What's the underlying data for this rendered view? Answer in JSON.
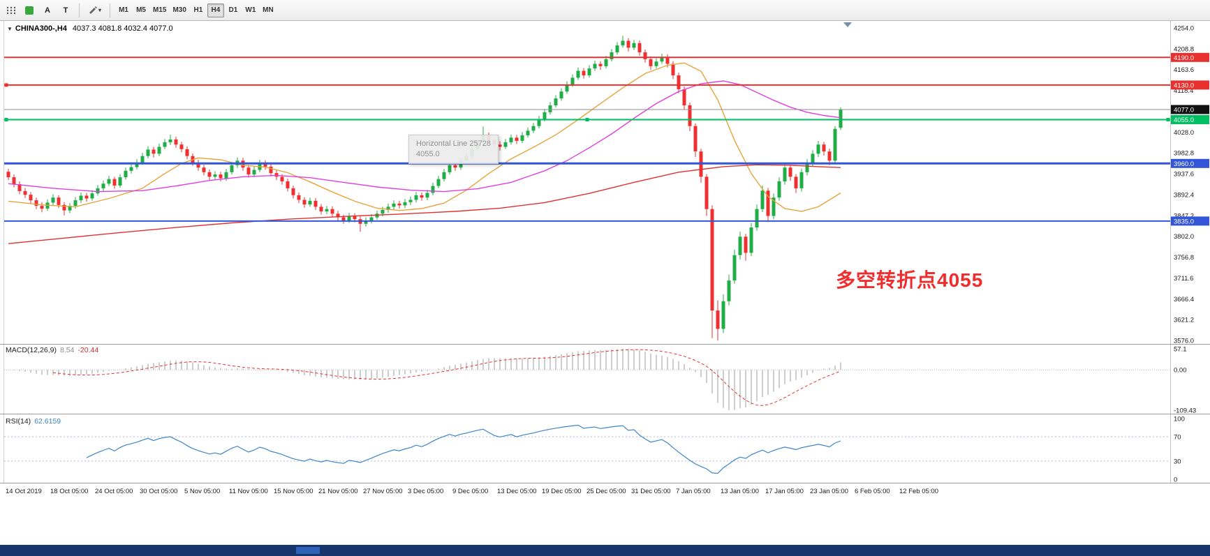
{
  "toolbar": {
    "text_button_label": "A",
    "tool_button_label": "T",
    "draw_dropdown_glyph": "▾",
    "timeframes": [
      "M1",
      "M5",
      "M15",
      "M30",
      "H1",
      "H4",
      "D1",
      "W1",
      "MN"
    ],
    "active_timeframe": "H4"
  },
  "chart": {
    "collapse_glyph": "▼",
    "title": "CHINA300-,H4",
    "ohlc": "4037.3 4081.8 4032.4 4077.0",
    "tooltip": {
      "line1": "Horizontal Line 25728",
      "line2": "4055.0"
    },
    "annotation": {
      "text": "多空转折点4055",
      "color": "#ef2d2d"
    }
  },
  "chart_data": {
    "type": "candlestick",
    "symbol": "CHINA300-",
    "timeframe": "H4",
    "current_bar": {
      "open": 4037.3,
      "high": 4081.8,
      "low": 4032.4,
      "close": 4077.0
    },
    "ylim": [
      3576.0,
      4254.0
    ],
    "colors": {
      "up": "#1fae45",
      "down": "#ef3030"
    },
    "price_axis_labels": [
      "4254.0",
      "4208.8",
      "4163.6",
      "4118.4",
      "4073.2",
      "4028.0",
      "3982.8",
      "3937.6",
      "3892.4",
      "3847.2",
      "3802.0",
      "3756.8",
      "3711.6",
      "3666.4",
      "3621.2",
      "3576.0"
    ],
    "x_axis_labels": [
      "14 Oct 2019",
      "18 Oct 05:00",
      "24 Oct 05:00",
      "30 Oct 05:00",
      "5 Nov 05:00",
      "11 Nov 05:00",
      "15 Nov 05:00",
      "21 Nov 05:00",
      "27 Nov 05:00",
      "3 Dec 05:00",
      "9 Dec 05:00",
      "13 Dec 05:00",
      "19 Dec 05:00",
      "25 Dec 05:00",
      "31 Dec 05:00",
      "7 Jan 05:00",
      "13 Jan 05:00",
      "17 Jan 05:00",
      "23 Jan 05:00",
      "6 Feb 05:00",
      "12 Feb 05:00"
    ],
    "candles": [
      [
        3942,
        3948,
        3924,
        3930
      ],
      [
        3930,
        3936,
        3908,
        3915
      ],
      [
        3915,
        3921,
        3893,
        3900
      ],
      [
        3900,
        3907,
        3885,
        3892
      ],
      [
        3892,
        3898,
        3873,
        3880
      ],
      [
        3880,
        3886,
        3861,
        3868
      ],
      [
        3868,
        3876,
        3854,
        3862
      ],
      [
        3862,
        3882,
        3857,
        3875
      ],
      [
        3875,
        3893,
        3869,
        3886
      ],
      [
        3886,
        3891,
        3863,
        3870
      ],
      [
        3870,
        3876,
        3847,
        3858
      ],
      [
        3858,
        3874,
        3852,
        3868
      ],
      [
        3868,
        3887,
        3862,
        3880
      ],
      [
        3880,
        3897,
        3874,
        3890
      ],
      [
        3890,
        3896,
        3877,
        3884
      ],
      [
        3884,
        3902,
        3879,
        3895
      ],
      [
        3895,
        3913,
        3890,
        3906
      ],
      [
        3906,
        3923,
        3900,
        3916
      ],
      [
        3916,
        3933,
        3911,
        3926
      ],
      [
        3926,
        3931,
        3905,
        3912
      ],
      [
        3912,
        3937,
        3907,
        3930
      ],
      [
        3930,
        3951,
        3925,
        3944
      ],
      [
        3944,
        3959,
        3938,
        3952
      ],
      [
        3952,
        3969,
        3947,
        3962
      ],
      [
        3962,
        3983,
        3957,
        3976
      ],
      [
        3976,
        3997,
        3971,
        3990
      ],
      [
        3990,
        3996,
        3973,
        3981
      ],
      [
        3981,
        4003,
        3976,
        3996
      ],
      [
        3996,
        4013,
        3991,
        4006
      ],
      [
        4006,
        4022,
        4000,
        4012
      ],
      [
        4012,
        4018,
        3994,
        4001
      ],
      [
        4001,
        4007,
        3984,
        3991
      ],
      [
        3991,
        3997,
        3969,
        3976
      ],
      [
        3976,
        3982,
        3955,
        3962
      ],
      [
        3962,
        3968,
        3944,
        3951
      ],
      [
        3951,
        3957,
        3934,
        3941
      ],
      [
        3941,
        3947,
        3924,
        3931
      ],
      [
        3931,
        3943,
        3925,
        3936
      ],
      [
        3936,
        3942,
        3921,
        3928
      ],
      [
        3928,
        3948,
        3922,
        3941
      ],
      [
        3941,
        3963,
        3936,
        3956
      ],
      [
        3956,
        3973,
        3950,
        3966
      ],
      [
        3966,
        3972,
        3944,
        3951
      ],
      [
        3951,
        3957,
        3929,
        3936
      ],
      [
        3936,
        3953,
        3930,
        3946
      ],
      [
        3946,
        3968,
        3941,
        3961
      ],
      [
        3961,
        3967,
        3946,
        3953
      ],
      [
        3953,
        3959,
        3932,
        3939
      ],
      [
        3939,
        3945,
        3924,
        3931
      ],
      [
        3931,
        3937,
        3914,
        3921
      ],
      [
        3921,
        3927,
        3899,
        3906
      ],
      [
        3906,
        3912,
        3884,
        3891
      ],
      [
        3891,
        3897,
        3874,
        3881
      ],
      [
        3881,
        3887,
        3864,
        3871
      ],
      [
        3871,
        3886,
        3866,
        3879
      ],
      [
        3879,
        3885,
        3859,
        3866
      ],
      [
        3866,
        3872,
        3849,
        3856
      ],
      [
        3856,
        3868,
        3850,
        3861
      ],
      [
        3861,
        3867,
        3844,
        3851
      ],
      [
        3851,
        3857,
        3836,
        3843
      ],
      [
        3843,
        3849,
        3829,
        3836
      ],
      [
        3836,
        3853,
        3831,
        3846
      ],
      [
        3846,
        3852,
        3832,
        3839
      ],
      [
        3839,
        3845,
        3812,
        3829
      ],
      [
        3829,
        3843,
        3823,
        3836
      ],
      [
        3836,
        3850,
        3830,
        3843
      ],
      [
        3843,
        3858,
        3838,
        3851
      ],
      [
        3851,
        3866,
        3845,
        3859
      ],
      [
        3859,
        3873,
        3853,
        3866
      ],
      [
        3866,
        3880,
        3860,
        3873
      ],
      [
        3873,
        3879,
        3862,
        3869
      ],
      [
        3869,
        3883,
        3863,
        3876
      ],
      [
        3876,
        3888,
        3870,
        3881
      ],
      [
        3881,
        3898,
        3875,
        3891
      ],
      [
        3891,
        3897,
        3879,
        3886
      ],
      [
        3886,
        3903,
        3880,
        3896
      ],
      [
        3896,
        3918,
        3891,
        3911
      ],
      [
        3911,
        3933,
        3906,
        3926
      ],
      [
        3926,
        3948,
        3921,
        3941
      ],
      [
        3941,
        3963,
        3936,
        3956
      ],
      [
        3956,
        3962,
        3944,
        3951
      ],
      [
        3951,
        3973,
        3946,
        3966
      ],
      [
        3966,
        3983,
        3960,
        3976
      ],
      [
        3976,
        3998,
        3971,
        3991
      ],
      [
        3991,
        4013,
        3986,
        4006
      ],
      [
        4006,
        4040,
        4001,
        4021
      ],
      [
        4021,
        4027,
        4004,
        4011
      ],
      [
        4011,
        4017,
        3994,
        4001
      ],
      [
        4001,
        4008,
        3988,
        3996
      ],
      [
        3996,
        4013,
        3991,
        4006
      ],
      [
        4006,
        4023,
        4001,
        4016
      ],
      [
        4016,
        4022,
        4002,
        4009
      ],
      [
        4009,
        4028,
        4004,
        4021
      ],
      [
        4021,
        4038,
        4016,
        4031
      ],
      [
        4031,
        4048,
        4026,
        4041
      ],
      [
        4041,
        4063,
        4036,
        4056
      ],
      [
        4056,
        4078,
        4051,
        4071
      ],
      [
        4071,
        4093,
        4066,
        4086
      ],
      [
        4086,
        4108,
        4081,
        4101
      ],
      [
        4101,
        4123,
        4096,
        4116
      ],
      [
        4116,
        4138,
        4111,
        4131
      ],
      [
        4131,
        4153,
        4126,
        4146
      ],
      [
        4146,
        4168,
        4141,
        4161
      ],
      [
        4161,
        4167,
        4144,
        4151
      ],
      [
        4151,
        4173,
        4146,
        4166
      ],
      [
        4166,
        4183,
        4161,
        4176
      ],
      [
        4176,
        4182,
        4163,
        4171
      ],
      [
        4171,
        4193,
        4166,
        4186
      ],
      [
        4186,
        4208,
        4181,
        4201
      ],
      [
        4201,
        4223,
        4196,
        4216
      ],
      [
        4216,
        4237,
        4211,
        4226
      ],
      [
        4226,
        4232,
        4203,
        4211
      ],
      [
        4211,
        4228,
        4206,
        4221
      ],
      [
        4221,
        4227,
        4194,
        4201
      ],
      [
        4201,
        4207,
        4179,
        4186
      ],
      [
        4186,
        4192,
        4163,
        4171
      ],
      [
        4171,
        4188,
        4166,
        4181
      ],
      [
        4181,
        4198,
        4176,
        4191
      ],
      [
        4191,
        4197,
        4168,
        4176
      ],
      [
        4176,
        4182,
        4143,
        4151
      ],
      [
        4151,
        4157,
        4112,
        4121
      ],
      [
        4121,
        4127,
        4076,
        4086
      ],
      [
        4086,
        4092,
        4030,
        4041
      ],
      [
        4041,
        4047,
        3974,
        3986
      ],
      [
        3986,
        3992,
        3918,
        3931
      ],
      [
        3931,
        3937,
        3846,
        3861
      ],
      [
        3861,
        3869,
        3581,
        3641
      ],
      [
        3641,
        3663,
        3576,
        3601
      ],
      [
        3601,
        3676,
        3592,
        3661
      ],
      [
        3661,
        3719,
        3652,
        3706
      ],
      [
        3706,
        3773,
        3699,
        3761
      ],
      [
        3761,
        3812,
        3752,
        3801
      ],
      [
        3801,
        3807,
        3749,
        3766
      ],
      [
        3766,
        3831,
        3759,
        3821
      ],
      [
        3821,
        3871,
        3814,
        3861
      ],
      [
        3861,
        3912,
        3854,
        3901
      ],
      [
        3901,
        3907,
        3833,
        3846
      ],
      [
        3846,
        3895,
        3839,
        3886
      ],
      [
        3886,
        3930,
        3879,
        3921
      ],
      [
        3921,
        3959,
        3914,
        3951
      ],
      [
        3951,
        3957,
        3922,
        3931
      ],
      [
        3931,
        3937,
        3896,
        3906
      ],
      [
        3906,
        3949,
        3899,
        3941
      ],
      [
        3941,
        3969,
        3934,
        3961
      ],
      [
        3961,
        3989,
        3954,
        3981
      ],
      [
        3981,
        4009,
        3974,
        4001
      ],
      [
        4001,
        4007,
        3977,
        3986
      ],
      [
        3986,
        3992,
        3956,
        3966
      ],
      [
        3966,
        4041,
        3960,
        4035
      ],
      [
        4037.3,
        4081.8,
        4032.4,
        4077.0
      ]
    ],
    "ma_lines": [
      {
        "name": "ma-fast-orange",
        "color": "#e8a33d",
        "points": [
          [
            0,
            3878
          ],
          [
            6,
            3870
          ],
          [
            12,
            3866
          ],
          [
            18,
            3884
          ],
          [
            24,
            3906
          ],
          [
            28,
            3938
          ],
          [
            31,
            3960
          ],
          [
            34,
            3972
          ],
          [
            38,
            3968
          ],
          [
            42,
            3956
          ],
          [
            46,
            3952
          ],
          [
            50,
            3940
          ],
          [
            54,
            3920
          ],
          [
            58,
            3898
          ],
          [
            62,
            3878
          ],
          [
            66,
            3863
          ],
          [
            70,
            3858
          ],
          [
            74,
            3862
          ],
          [
            78,
            3874
          ],
          [
            82,
            3902
          ],
          [
            86,
            3938
          ],
          [
            90,
            3970
          ],
          [
            94,
            3995
          ],
          [
            98,
            4022
          ],
          [
            102,
            4055
          ],
          [
            106,
            4090
          ],
          [
            110,
            4124
          ],
          [
            114,
            4155
          ],
          [
            118,
            4173
          ],
          [
            121,
            4178
          ],
          [
            124,
            4160
          ],
          [
            127,
            4098
          ],
          [
            130,
            4010
          ],
          [
            133,
            3938
          ],
          [
            136,
            3888
          ],
          [
            139,
            3862
          ],
          [
            142,
            3856
          ],
          [
            145,
            3866
          ],
          [
            149,
            3896
          ]
        ]
      },
      {
        "name": "ma-mid-magenta",
        "color": "#e040e0",
        "points": [
          [
            0,
            3916
          ],
          [
            8,
            3906
          ],
          [
            16,
            3899
          ],
          [
            24,
            3901
          ],
          [
            30,
            3911
          ],
          [
            36,
            3923
          ],
          [
            42,
            3931
          ],
          [
            48,
            3934
          ],
          [
            54,
            3929
          ],
          [
            60,
            3919
          ],
          [
            66,
            3909
          ],
          [
            72,
            3902
          ],
          [
            78,
            3899
          ],
          [
            84,
            3905
          ],
          [
            90,
            3919
          ],
          [
            96,
            3944
          ],
          [
            100,
            3966
          ],
          [
            104,
            3994
          ],
          [
            108,
            4024
          ],
          [
            112,
            4058
          ],
          [
            116,
            4090
          ],
          [
            120,
            4116
          ],
          [
            124,
            4133
          ],
          [
            128,
            4139
          ],
          [
            131,
            4131
          ],
          [
            134,
            4114
          ],
          [
            137,
            4097
          ],
          [
            140,
            4082
          ],
          [
            143,
            4071
          ],
          [
            146,
            4064
          ],
          [
            149,
            4059
          ]
        ]
      },
      {
        "name": "ma-slow-red",
        "color": "#e03131",
        "points": [
          [
            0,
            3786
          ],
          [
            10,
            3798
          ],
          [
            20,
            3810
          ],
          [
            30,
            3821
          ],
          [
            40,
            3831
          ],
          [
            50,
            3839
          ],
          [
            60,
            3845
          ],
          [
            70,
            3850
          ],
          [
            80,
            3856
          ],
          [
            88,
            3863
          ],
          [
            96,
            3875
          ],
          [
            104,
            3895
          ],
          [
            112,
            3919
          ],
          [
            120,
            3941
          ],
          [
            128,
            3953
          ],
          [
            134,
            3957
          ],
          [
            140,
            3956
          ],
          [
            145,
            3953
          ],
          [
            149,
            3951
          ]
        ]
      }
    ],
    "hlines": [
      {
        "price": 4190.0,
        "color": "#e8312f",
        "width": 2,
        "badge": "4190.0"
      },
      {
        "price": 4130.0,
        "color": "#e8312f",
        "width": 2,
        "badge": "4130.0",
        "handles": [
          0
        ]
      },
      {
        "price": 4077.0,
        "color": "#8c8c8c",
        "width": 1,
        "badge": "4077.0",
        "badge_color": "#111111"
      },
      {
        "price": 4055.0,
        "color": "#00bf63",
        "width": 2,
        "badge": "4055.0",
        "handles": [
          0,
          0.5,
          1
        ]
      },
      {
        "price": 3960.0,
        "color": "#3355d8",
        "width": 3,
        "badge": "3960.0"
      },
      {
        "price": 3835.0,
        "color": "#3355d8",
        "width": 2,
        "badge": "3835.0"
      }
    ],
    "indicators": {
      "macd": {
        "label": "MACD(12,26,9)",
        "values": [
          "8.54",
          "-20.44"
        ],
        "axis_labels": [
          "57.1",
          "0.00",
          "-109.43"
        ],
        "ylim": [
          -109.43,
          57.1
        ],
        "hist_color": "#b9b9b9",
        "signal_color": "#e8312f"
      },
      "rsi": {
        "label": "RSI(14)",
        "value": "62.6159",
        "axis_labels": [
          "100",
          "70",
          "30",
          "0"
        ],
        "levels": [
          70,
          30
        ],
        "level_color": "#b9b9d9",
        "color": "#3d85c8"
      }
    }
  }
}
